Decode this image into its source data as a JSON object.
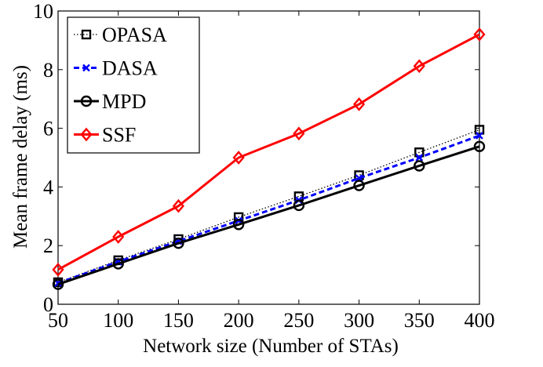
{
  "chart_data": {
    "type": "line",
    "title": "",
    "xlabel": "Network size (Number of STAs)",
    "ylabel": "Mean frame delay (ms)",
    "xlim": [
      50,
      400
    ],
    "ylim": [
      0,
      10
    ],
    "x": [
      50,
      100,
      150,
      200,
      250,
      300,
      350,
      400
    ],
    "x_ticks": [
      "50",
      "100",
      "150",
      "200",
      "250",
      "300",
      "350",
      "400"
    ],
    "y_ticks": [
      "0",
      "2",
      "4",
      "6",
      "8",
      "10"
    ],
    "legend_position": "top-left",
    "grid": false,
    "series": [
      {
        "name": "OPASA",
        "color": "#000000",
        "dash": "dotted",
        "marker": "square",
        "values": [
          0.75,
          1.5,
          2.22,
          2.97,
          3.68,
          4.4,
          5.18,
          5.95
        ]
      },
      {
        "name": "DASA",
        "color": "#0000ff",
        "dash": "dashed",
        "marker": "x",
        "values": [
          0.72,
          1.45,
          2.15,
          2.85,
          3.55,
          4.3,
          5.0,
          5.75
        ]
      },
      {
        "name": "MPD",
        "color": "#000000",
        "dash": "solid",
        "marker": "circle",
        "values": [
          0.68,
          1.38,
          2.08,
          2.72,
          3.37,
          4.05,
          4.72,
          5.38
        ]
      },
      {
        "name": "SSF",
        "color": "#ff0000",
        "dash": "solid",
        "marker": "diamond",
        "values": [
          1.18,
          2.3,
          3.35,
          5.0,
          5.82,
          6.82,
          8.12,
          9.2
        ]
      }
    ]
  }
}
